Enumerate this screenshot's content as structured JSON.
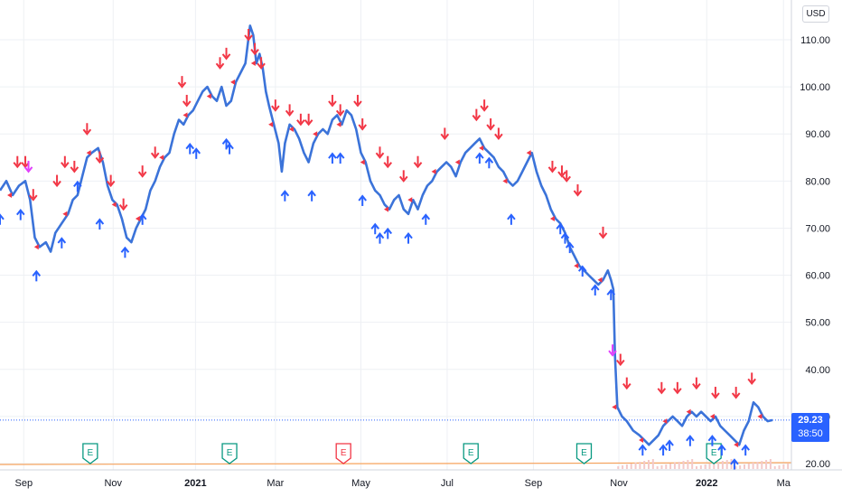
{
  "currency": "USD",
  "last_price": "29.23",
  "countdown": "38:50",
  "earnings_label": "E",
  "colors": {
    "line": "#3b73d9",
    "up_arrow": "#2962ff",
    "down_arrow": "#f23645",
    "special_arrow": "#e040fb",
    "earnings_green": "#089981",
    "earnings_red": "#f23645",
    "price_tag": "#2962ff",
    "volume": "#f7a35c"
  },
  "chart_data": {
    "type": "line",
    "ylim": [
      18,
      116
    ],
    "y_ticks": [
      "110.00",
      "100.00",
      "90.00",
      "80.00",
      "70.00",
      "60.00",
      "50.00",
      "40.00",
      "30.00",
      "20.00"
    ],
    "y_tick_values": [
      110,
      100,
      90,
      80,
      70,
      60,
      50,
      40,
      30,
      20
    ],
    "x_ticks": [
      {
        "label": "Sep",
        "t": 0.03,
        "bold": false
      },
      {
        "label": "Nov",
        "t": 0.143,
        "bold": false
      },
      {
        "label": "2021",
        "t": 0.247,
        "bold": true
      },
      {
        "label": "Mar",
        "t": 0.348,
        "bold": false
      },
      {
        "label": "May",
        "t": 0.456,
        "bold": false
      },
      {
        "label": "Jul",
        "t": 0.565,
        "bold": false
      },
      {
        "label": "Sep",
        "t": 0.674,
        "bold": false
      },
      {
        "label": "Nov",
        "t": 0.782,
        "bold": false
      },
      {
        "label": "2022",
        "t": 0.893,
        "bold": true
      },
      {
        "label": "Ma",
        "t": 0.99,
        "bold": false
      }
    ],
    "series": [
      {
        "points": [
          [
            0.0,
            78
          ],
          [
            0.008,
            80
          ],
          [
            0.016,
            77
          ],
          [
            0.024,
            79
          ],
          [
            0.032,
            80
          ],
          [
            0.038,
            76
          ],
          [
            0.044,
            68
          ],
          [
            0.05,
            66
          ],
          [
            0.058,
            67
          ],
          [
            0.064,
            65
          ],
          [
            0.07,
            69
          ],
          [
            0.078,
            71
          ],
          [
            0.086,
            73
          ],
          [
            0.092,
            76
          ],
          [
            0.098,
            77
          ],
          [
            0.104,
            81
          ],
          [
            0.11,
            85
          ],
          [
            0.116,
            86
          ],
          [
            0.124,
            87
          ],
          [
            0.13,
            84
          ],
          [
            0.136,
            79
          ],
          [
            0.142,
            76
          ],
          [
            0.148,
            75
          ],
          [
            0.154,
            72
          ],
          [
            0.16,
            68
          ],
          [
            0.166,
            67
          ],
          [
            0.172,
            70
          ],
          [
            0.178,
            72
          ],
          [
            0.184,
            74
          ],
          [
            0.19,
            78
          ],
          [
            0.196,
            80
          ],
          [
            0.202,
            83
          ],
          [
            0.208,
            85
          ],
          [
            0.214,
            86
          ],
          [
            0.22,
            90
          ],
          [
            0.226,
            93
          ],
          [
            0.232,
            92
          ],
          [
            0.238,
            94
          ],
          [
            0.244,
            95
          ],
          [
            0.25,
            97
          ],
          [
            0.256,
            99
          ],
          [
            0.262,
            100
          ],
          [
            0.268,
            98
          ],
          [
            0.274,
            97
          ],
          [
            0.28,
            100
          ],
          [
            0.286,
            96
          ],
          [
            0.292,
            97
          ],
          [
            0.298,
            101
          ],
          [
            0.304,
            103
          ],
          [
            0.31,
            105
          ],
          [
            0.316,
            113
          ],
          [
            0.32,
            111
          ],
          [
            0.324,
            105
          ],
          [
            0.328,
            107
          ],
          [
            0.332,
            104
          ],
          [
            0.336,
            99
          ],
          [
            0.34,
            96
          ],
          [
            0.346,
            92
          ],
          [
            0.352,
            88
          ],
          [
            0.356,
            82
          ],
          [
            0.36,
            88
          ],
          [
            0.366,
            92
          ],
          [
            0.372,
            91
          ],
          [
            0.378,
            89
          ],
          [
            0.384,
            86
          ],
          [
            0.39,
            84
          ],
          [
            0.396,
            88
          ],
          [
            0.402,
            90
          ],
          [
            0.408,
            91
          ],
          [
            0.414,
            90
          ],
          [
            0.42,
            93
          ],
          [
            0.426,
            94
          ],
          [
            0.432,
            92
          ],
          [
            0.438,
            95
          ],
          [
            0.444,
            94
          ],
          [
            0.45,
            91
          ],
          [
            0.456,
            86
          ],
          [
            0.462,
            84
          ],
          [
            0.468,
            80
          ],
          [
            0.474,
            78
          ],
          [
            0.48,
            77
          ],
          [
            0.486,
            75
          ],
          [
            0.492,
            74
          ],
          [
            0.498,
            76
          ],
          [
            0.504,
            77
          ],
          [
            0.51,
            74
          ],
          [
            0.516,
            73
          ],
          [
            0.522,
            76
          ],
          [
            0.528,
            74
          ],
          [
            0.534,
            77
          ],
          [
            0.54,
            79
          ],
          [
            0.546,
            80
          ],
          [
            0.552,
            82
          ],
          [
            0.558,
            83
          ],
          [
            0.564,
            84
          ],
          [
            0.57,
            83
          ],
          [
            0.576,
            81
          ],
          [
            0.582,
            84
          ],
          [
            0.588,
            86
          ],
          [
            0.594,
            87
          ],
          [
            0.6,
            88
          ],
          [
            0.606,
            89
          ],
          [
            0.612,
            87
          ],
          [
            0.618,
            86
          ],
          [
            0.624,
            85
          ],
          [
            0.63,
            83
          ],
          [
            0.636,
            82
          ],
          [
            0.642,
            80
          ],
          [
            0.648,
            79
          ],
          [
            0.654,
            80
          ],
          [
            0.66,
            82
          ],
          [
            0.666,
            84
          ],
          [
            0.672,
            86
          ],
          [
            0.678,
            82
          ],
          [
            0.684,
            79
          ],
          [
            0.69,
            77
          ],
          [
            0.696,
            74
          ],
          [
            0.702,
            72
          ],
          [
            0.708,
            71
          ],
          [
            0.714,
            69
          ],
          [
            0.72,
            66
          ],
          [
            0.726,
            64
          ],
          [
            0.732,
            62
          ],
          [
            0.738,
            61
          ],
          [
            0.744,
            60
          ],
          [
            0.75,
            59
          ],
          [
            0.756,
            58
          ],
          [
            0.762,
            59
          ],
          [
            0.768,
            61
          ],
          [
            0.772,
            59
          ],
          [
            0.775,
            57
          ],
          [
            0.777,
            43
          ],
          [
            0.78,
            32
          ],
          [
            0.786,
            30
          ],
          [
            0.792,
            29
          ],
          [
            0.8,
            27
          ],
          [
            0.808,
            26
          ],
          [
            0.814,
            25
          ],
          [
            0.82,
            24
          ],
          [
            0.826,
            25
          ],
          [
            0.832,
            26
          ],
          [
            0.838,
            28
          ],
          [
            0.844,
            29
          ],
          [
            0.85,
            30
          ],
          [
            0.856,
            29
          ],
          [
            0.862,
            28
          ],
          [
            0.868,
            30
          ],
          [
            0.874,
            31
          ],
          [
            0.88,
            30
          ],
          [
            0.886,
            31
          ],
          [
            0.892,
            30
          ],
          [
            0.898,
            29
          ],
          [
            0.904,
            30
          ],
          [
            0.91,
            28
          ],
          [
            0.916,
            27
          ],
          [
            0.922,
            26
          ],
          [
            0.928,
            25
          ],
          [
            0.934,
            24
          ],
          [
            0.94,
            27
          ],
          [
            0.946,
            29
          ],
          [
            0.952,
            33
          ],
          [
            0.958,
            32
          ],
          [
            0.964,
            30
          ],
          [
            0.97,
            29
          ],
          [
            0.976,
            29.23
          ]
        ]
      }
    ],
    "down_arrows": [
      [
        0.022,
        83
      ],
      [
        0.032,
        83
      ],
      [
        0.042,
        76
      ],
      [
        0.072,
        79
      ],
      [
        0.082,
        83
      ],
      [
        0.094,
        82
      ],
      [
        0.11,
        90
      ],
      [
        0.126,
        84
      ],
      [
        0.14,
        79
      ],
      [
        0.156,
        74
      ],
      [
        0.18,
        81
      ],
      [
        0.196,
        85
      ],
      [
        0.23,
        100
      ],
      [
        0.236,
        96
      ],
      [
        0.278,
        104
      ],
      [
        0.286,
        106
      ],
      [
        0.314,
        110
      ],
      [
        0.322,
        107
      ],
      [
        0.33,
        104
      ],
      [
        0.348,
        95
      ],
      [
        0.366,
        94
      ],
      [
        0.38,
        92
      ],
      [
        0.39,
        92
      ],
      [
        0.42,
        96
      ],
      [
        0.43,
        94
      ],
      [
        0.452,
        96
      ],
      [
        0.458,
        91
      ],
      [
        0.48,
        85
      ],
      [
        0.49,
        83
      ],
      [
        0.51,
        80
      ],
      [
        0.528,
        83
      ],
      [
        0.562,
        89
      ],
      [
        0.602,
        93
      ],
      [
        0.612,
        95
      ],
      [
        0.62,
        91
      ],
      [
        0.63,
        89
      ],
      [
        0.698,
        82
      ],
      [
        0.71,
        81
      ],
      [
        0.716,
        80
      ],
      [
        0.73,
        77
      ],
      [
        0.762,
        68
      ],
      [
        0.784,
        41
      ],
      [
        0.792,
        36
      ],
      [
        0.836,
        35
      ],
      [
        0.856,
        35
      ],
      [
        0.88,
        36
      ],
      [
        0.904,
        34
      ],
      [
        0.93,
        34
      ],
      [
        0.95,
        37
      ]
    ],
    "up_arrows": [
      [
        0.0,
        73
      ],
      [
        0.026,
        74
      ],
      [
        0.046,
        61
      ],
      [
        0.078,
        68
      ],
      [
        0.098,
        80
      ],
      [
        0.126,
        72
      ],
      [
        0.158,
        66
      ],
      [
        0.18,
        73
      ],
      [
        0.24,
        88
      ],
      [
        0.248,
        87
      ],
      [
        0.286,
        89
      ],
      [
        0.29,
        88
      ],
      [
        0.36,
        78
      ],
      [
        0.394,
        78
      ],
      [
        0.42,
        86
      ],
      [
        0.43,
        86
      ],
      [
        0.458,
        77
      ],
      [
        0.474,
        71
      ],
      [
        0.48,
        69
      ],
      [
        0.49,
        70
      ],
      [
        0.516,
        69
      ],
      [
        0.538,
        73
      ],
      [
        0.606,
        86
      ],
      [
        0.618,
        85
      ],
      [
        0.646,
        73
      ],
      [
        0.708,
        71
      ],
      [
        0.714,
        69
      ],
      [
        0.72,
        67
      ],
      [
        0.736,
        62
      ],
      [
        0.752,
        58
      ],
      [
        0.772,
        57
      ],
      [
        0.812,
        24
      ],
      [
        0.838,
        24
      ],
      [
        0.846,
        25
      ],
      [
        0.872,
        26
      ],
      [
        0.9,
        26
      ],
      [
        0.912,
        24
      ],
      [
        0.928,
        21
      ],
      [
        0.942,
        24
      ]
    ],
    "special_arrows": [
      [
        0.036,
        82
      ],
      [
        0.774,
        43
      ]
    ],
    "earnings": [
      {
        "t": 0.114,
        "color": "green"
      },
      {
        "t": 0.29,
        "color": "green"
      },
      {
        "t": 0.434,
        "color": "red"
      },
      {
        "t": 0.595,
        "color": "green"
      },
      {
        "t": 0.738,
        "color": "green"
      },
      {
        "t": 0.902,
        "color": "green"
      }
    ]
  }
}
